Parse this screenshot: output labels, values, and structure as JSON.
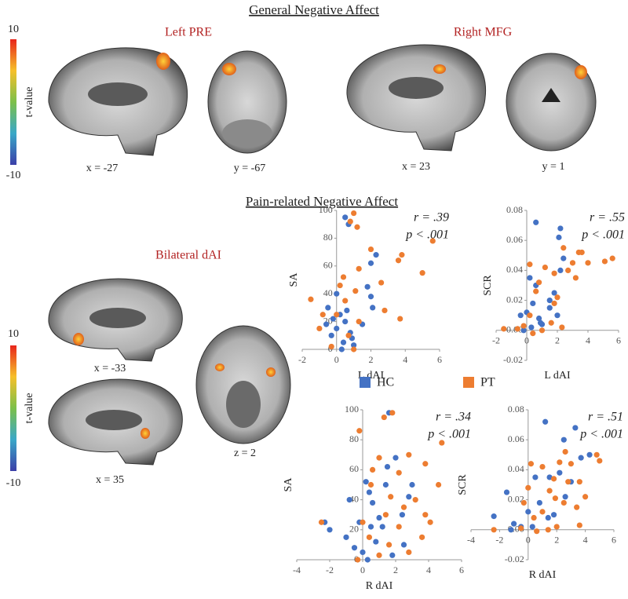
{
  "title_general": "General Negative Affect",
  "title_pain": "Pain-related Negative Affect",
  "colorbar": {
    "max": "10",
    "min": "-10",
    "label": "t-value"
  },
  "regions": [
    "Left PRE",
    "Right MFG",
    "Bilateral  dAI"
  ],
  "slices": [
    "x = -27",
    "y = -67",
    "x = 23",
    "y = 1",
    "x = -33",
    "x = 35",
    "z = 2"
  ],
  "legend": [
    {
      "name": "HC",
      "color": "#4472c4"
    },
    {
      "name": "PT",
      "color": "#ed7d31"
    }
  ],
  "chart_data": [
    {
      "type": "scatter",
      "xlabel": "L dAI",
      "ylabel": "SA",
      "annotations": [
        "r = .39",
        "p < .001"
      ],
      "xlim": [
        -2,
        6
      ],
      "xticks": [
        -2,
        0,
        2,
        4,
        6
      ],
      "ylim": [
        0,
        100
      ],
      "yticks": [
        0,
        20,
        40,
        60,
        80,
        100
      ],
      "series": [
        {
          "color": "#4472c4",
          "x": [
            0.5,
            0.7,
            2.3,
            2,
            1.8,
            2,
            0,
            -0.5,
            0.2,
            0.5,
            0,
            0.8,
            -0.3,
            0.4,
            1,
            0.3,
            1.5,
            0.6,
            -0.2,
            2.1,
            0.9,
            -0.6
          ],
          "values": [
            95,
            90,
            68,
            62,
            45,
            38,
            40,
            30,
            25,
            20,
            15,
            12,
            10,
            5,
            3,
            0,
            18,
            28,
            22,
            30,
            8,
            18
          ]
        },
        {
          "color": "#ed7d31",
          "x": [
            1,
            0.8,
            1.2,
            5.6,
            2,
            3.8,
            3.6,
            1.3,
            5,
            0.4,
            -1.5,
            0.2,
            2.6,
            1.1,
            3.7,
            2.8,
            0.5,
            -0.8,
            -1,
            0,
            1.3,
            0.7,
            -0.3,
            1
          ],
          "values": [
            98,
            92,
            88,
            78,
            72,
            68,
            64,
            58,
            55,
            52,
            36,
            46,
            48,
            42,
            22,
            28,
            35,
            25,
            15,
            25,
            20,
            10,
            2,
            0
          ]
        }
      ]
    },
    {
      "type": "scatter",
      "xlabel": "L dAI",
      "ylabel": "SCR",
      "annotations": [
        "r = .55",
        "p < .001"
      ],
      "xlim": [
        -2,
        6
      ],
      "xticks": [
        -2,
        0,
        2,
        4,
        6
      ],
      "ylim": [
        -0.02,
        0.08
      ],
      "yticks": [
        -0.02,
        {
          "value": 0,
          "label": "0.00"
        },
        0.02,
        0.04,
        0.06,
        0.08
      ],
      "series": [
        {
          "color": "#4472c4",
          "x": [
            0.6,
            2.2,
            2.1,
            2.4,
            2.2,
            0.2,
            0.6,
            1.8,
            1.5,
            0.4,
            0,
            0.8,
            -0.4,
            1,
            0.3,
            -0.2,
            1.5,
            0.9,
            2
          ],
          "values": [
            0.072,
            0.068,
            0.062,
            0.048,
            0.04,
            0.035,
            0.03,
            0.025,
            0.02,
            0.018,
            0.012,
            0.008,
            0.01,
            0.004,
            0.002,
            0,
            0.015,
            0.005,
            0.01
          ]
        },
        {
          "color": "#ed7d31",
          "x": [
            5.6,
            5.1,
            3.6,
            3.4,
            2.4,
            3,
            4,
            2.7,
            0.2,
            1.2,
            1.8,
            3.2,
            0.8,
            0.6,
            2,
            1.8,
            0.2,
            -1.5,
            -0.6,
            1.6,
            2.3,
            1,
            0.4,
            -0.2
          ],
          "values": [
            0.048,
            0.046,
            0.052,
            0.052,
            0.055,
            0.045,
            0.045,
            0.04,
            0.044,
            0.042,
            0.038,
            0.035,
            0.032,
            0.026,
            0.022,
            0.018,
            0.01,
            0.001,
            0.001,
            0.005,
            0.002,
            0,
            -0.002,
            0.003
          ]
        }
      ]
    },
    {
      "type": "scatter",
      "xlabel": "R dAI",
      "ylabel": "SA",
      "annotations": [
        "r = .34",
        "p < .001"
      ],
      "xlim": [
        -4,
        6
      ],
      "xticks": [
        -4,
        -2,
        0,
        2,
        4,
        6
      ],
      "ylim": [
        0,
        100
      ],
      "yticks": [
        0,
        20,
        40,
        60,
        80,
        100
      ],
      "series": [
        {
          "color": "#4472c4",
          "x": [
            1.6,
            2,
            1.5,
            1.4,
            0.2,
            3,
            0.4,
            2.8,
            -0.8,
            0.6,
            2.4,
            -0.2,
            0.5,
            -2,
            1.2,
            -1,
            0.8,
            2.5,
            0,
            -0.5,
            1.8,
            0.3,
            1,
            -2.3
          ],
          "values": [
            98,
            68,
            62,
            50,
            52,
            50,
            45,
            42,
            40,
            38,
            30,
            25,
            22,
            20,
            22,
            15,
            12,
            10,
            5,
            8,
            3,
            0,
            28,
            25
          ]
        },
        {
          "color": "#ed7d31",
          "x": [
            1.8,
            1.3,
            -0.2,
            4.8,
            2.8,
            3.8,
            2.2,
            0.6,
            1,
            4.6,
            0.5,
            1.7,
            3.2,
            2.5,
            -2.5,
            0,
            1.4,
            3.8,
            4.1,
            2.2,
            0.4,
            3.6,
            1.6,
            2.8,
            -0.3,
            1
          ],
          "values": [
            98,
            95,
            86,
            78,
            70,
            64,
            58,
            60,
            68,
            50,
            50,
            42,
            40,
            35,
            25,
            25,
            30,
            30,
            25,
            22,
            15,
            15,
            10,
            5,
            0,
            3
          ]
        }
      ]
    },
    {
      "type": "scatter",
      "xlabel": "R dAI",
      "ylabel": "SCR",
      "annotations": [
        "r = .51",
        "p < .001"
      ],
      "xlim": [
        -4,
        6
      ],
      "xticks": [
        -4,
        -2,
        0,
        2,
        4,
        6
      ],
      "ylim": [
        -0.02,
        0.08
      ],
      "yticks": [
        -0.02,
        {
          "value": 0,
          "label": "0.00"
        },
        0.02,
        0.04,
        0.06,
        0.08
      ],
      "series": [
        {
          "color": "#4472c4",
          "x": [
            1.2,
            3.3,
            2.5,
            4.3,
            3.7,
            0.5,
            1.5,
            3,
            2.2,
            -1.5,
            0.8,
            0,
            1.8,
            -2.4,
            -1,
            -0.5,
            -1.2,
            0.3,
            1.4,
            2.6
          ],
          "values": [
            0.072,
            0.068,
            0.06,
            0.05,
            0.048,
            0.035,
            0.035,
            0.032,
            0.038,
            0.025,
            0.018,
            0.012,
            0.01,
            0.009,
            0.004,
            0.002,
            0,
            0.002,
            0.008,
            0.022
          ]
        },
        {
          "color": "#ed7d31",
          "x": [
            4.8,
            5,
            2.6,
            2.2,
            3,
            0.2,
            1,
            1.8,
            2.8,
            3.6,
            4,
            1.5,
            0,
            -0.3,
            2.5,
            3.4,
            1,
            0.4,
            2,
            3.6,
            0.6,
            -2.4,
            1.4,
            -0.5,
            1.9
          ],
          "values": [
            0.05,
            0.046,
            0.052,
            0.045,
            0.044,
            0.044,
            0.042,
            0.034,
            0.032,
            0.032,
            0.022,
            0.026,
            0.028,
            0.018,
            0.018,
            0.015,
            0.012,
            0.008,
            0.002,
            0.003,
            -0.001,
            0,
            0,
            0.001,
            0.021
          ]
        }
      ]
    }
  ]
}
